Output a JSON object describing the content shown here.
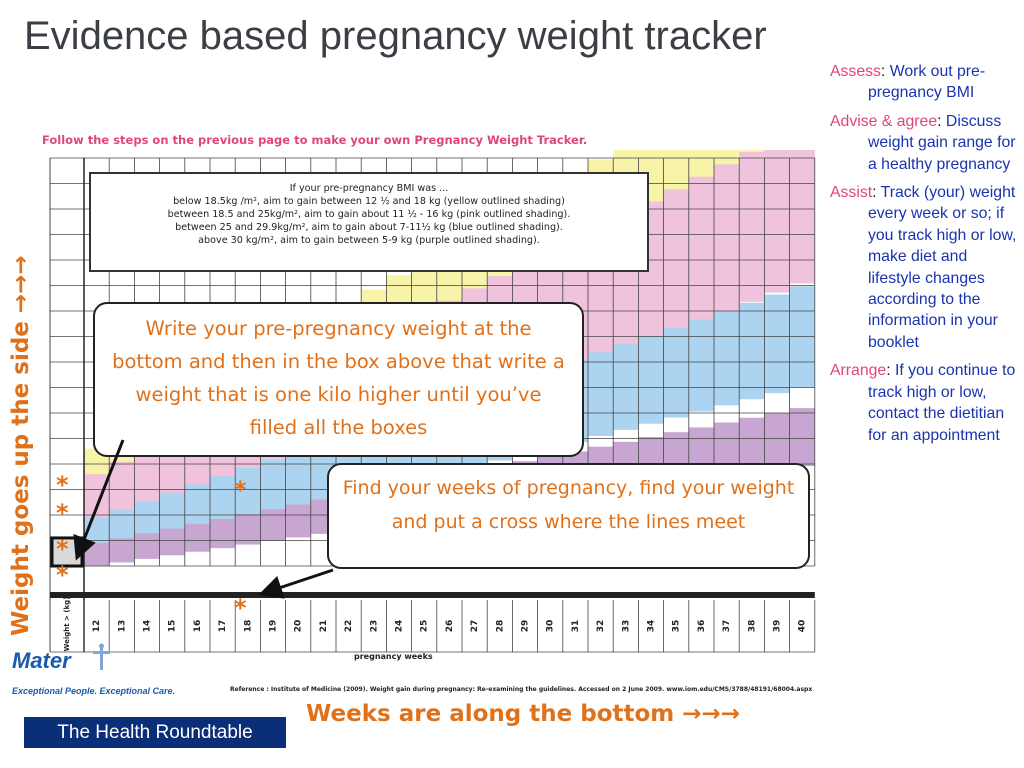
{
  "title": "Evidence based pregnancy weight tracker",
  "steps_note": "Follow the steps on the previous page to make your own Pregnancy Weight Tracker.",
  "info_box": {
    "lines": [
      "If your pre-pregnancy BMI was ...",
      "below 18.5kg /m², aim to gain between 12 ½ and 18 kg (yellow outlined shading)",
      "between 18.5 and 25kg/m², aim to gain about 11 ½ - 16 kg (pink outlined shading).",
      "between 25 and 29.9kg/m², aim to gain about 7-11½ kg (blue outlined shading).",
      "above 30 kg/m², aim to gain between 5-9 kg (purple outlined shading)."
    ]
  },
  "callouts": {
    "prepregnancy": "Write your pre-pregnancy weight at the bottom and then in the box above that write a weight that is one kilo higher until you’ve filled all the boxes",
    "weeks": "Find your weeks of pregnancy, find your weight and put a cross where the lines meet"
  },
  "side_label": "Weight goes up the side →→→",
  "bottom_label": "Weeks are along the bottom →→→",
  "asterisk": "*",
  "chart": {
    "axis_label": "Weight > (kg)",
    "weeks": [
      "12",
      "13",
      "14",
      "15",
      "16",
      "17",
      "18",
      "19",
      "20",
      "21",
      "22",
      "23",
      "24",
      "25",
      "26",
      "27",
      "28",
      "29",
      "30",
      "31",
      "32",
      "33",
      "34",
      "35",
      "36",
      "37",
      "38",
      "39",
      "40"
    ],
    "xlabel": "pregnancy weeks",
    "reference": "Reference : Institute of Medicine (2009). Weight gain during pregnancy: Re-examining the guidelines.  Accessed on 2 June 2009. www.iom.edu/CMS/3788/48191/68004.aspx",
    "colors": {
      "yellow": "#f7f3a8",
      "pink": "#f0c3dc",
      "blue": "#acd4f0",
      "purple": "#c8a6d2",
      "yellow_line": "#ede65a",
      "pink_line": "#ee95bf",
      "blue_line": "#7fb6e6"
    }
  },
  "logo": {
    "name": "Mater",
    "tagline": "Exceptional People. Exceptional Care."
  },
  "footer_badge": "The Health Roundtable",
  "right_panel": [
    {
      "head": "Assess",
      "text": "Work out pre-pregnancy BMI"
    },
    {
      "head": "Advise & agree",
      "text": "Discuss weight gain range for a healthy pregnancy"
    },
    {
      "head": "Assist",
      "text": "Track (your) weight every week or so; if you track high or low, make diet and lifestyle changes according to the information in your booklet"
    },
    {
      "head": "Arrange",
      "text": "If you continue to track high or low, contact the dietitian for an appointment"
    }
  ]
}
